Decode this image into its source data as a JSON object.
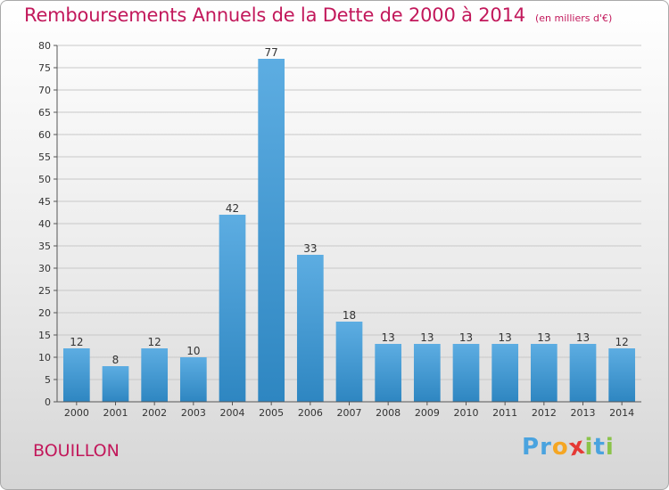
{
  "header": {
    "title": "Remboursements Annuels de la Dette de 2000 à 2014",
    "subtitle": "(en milliers d'€)"
  },
  "commune": "BOUILLON",
  "logo": {
    "letters": [
      {
        "ch": "P",
        "color": "#4aa3df"
      },
      {
        "ch": "r",
        "color": "#4aa3df"
      },
      {
        "ch": "o",
        "color": "#f5a623"
      },
      {
        "ch": "x",
        "color": "#e53935"
      },
      {
        "ch": "i",
        "color": "#8bc34a"
      },
      {
        "ch": "t",
        "color": "#4aa3df"
      },
      {
        "ch": "i",
        "color": "#8bc34a"
      }
    ]
  },
  "chart_data": {
    "type": "bar",
    "title": "Remboursements Annuels de la Dette de 2000 à 2014",
    "subtitle": "(en milliers d'€)",
    "categories": [
      "2000",
      "2001",
      "2002",
      "2003",
      "2004",
      "2005",
      "2006",
      "2007",
      "2008",
      "2009",
      "2010",
      "2011",
      "2012",
      "2013",
      "2014"
    ],
    "values": [
      12,
      8,
      12,
      10,
      42,
      77,
      33,
      18,
      13,
      13,
      13,
      13,
      13,
      13,
      12
    ],
    "ylim": [
      0,
      80
    ],
    "yticks": [
      0,
      5,
      10,
      15,
      20,
      25,
      30,
      35,
      40,
      45,
      50,
      55,
      60,
      65,
      70,
      75,
      80
    ],
    "grid": true,
    "bar_color_top": "#5dade2",
    "bar_color_bottom": "#2e86c1",
    "grid_color": "#c8c8c8",
    "axis_color": "#555555",
    "title_color": "#c2185b"
  }
}
